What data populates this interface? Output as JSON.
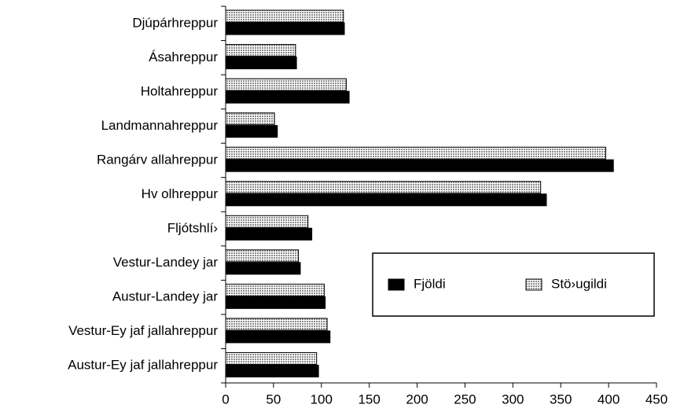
{
  "chart_data": {
    "type": "hbar",
    "categories": [
      "Djúpárhreppur",
      "Ásahreppur",
      "Holtahreppur",
      "Landmannahreppur",
      "Rangárv allahreppur",
      "Hv olhreppur",
      "Fljótshlí›",
      "Vestur-Landey jar",
      "Austur-Landey jar",
      "Vestur-Ey jaf jallahreppur",
      "Austur-Ey jaf jallahreppur"
    ],
    "series": [
      {
        "name": "Fjöldi",
        "color": "#000000",
        "values": [
          124,
          74,
          129,
          54,
          405,
          335,
          90,
          78,
          104,
          109,
          97
        ]
      },
      {
        "name": "Stö›ugildi",
        "color": "#c8c8c8",
        "values": [
          123,
          73,
          126,
          51,
          397,
          329,
          86,
          76,
          103,
          106,
          95
        ]
      }
    ],
    "xlim": [
      0,
      450
    ],
    "xticks": [
      0,
      50,
      100,
      150,
      200,
      250,
      300,
      350,
      400,
      450
    ],
    "grid": false,
    "legend": "lower right"
  }
}
